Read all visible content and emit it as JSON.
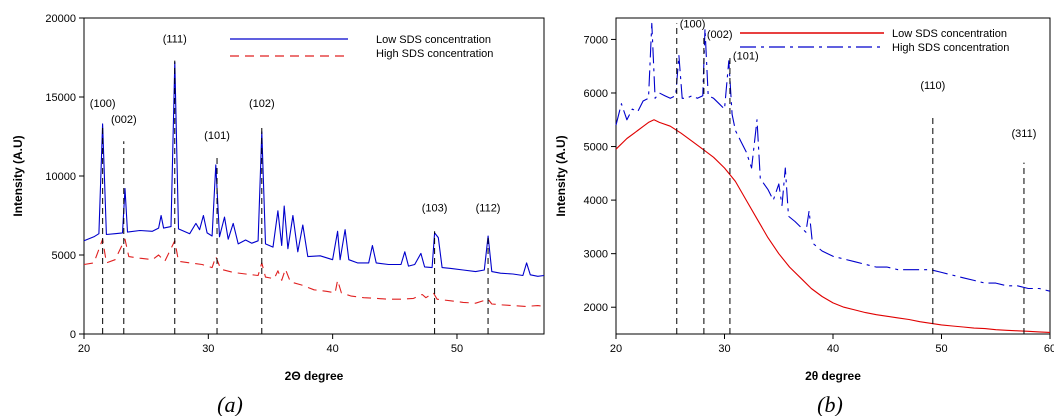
{
  "chart_data": [
    {
      "id": "a",
      "type": "line",
      "caption": "(a)",
      "xlabel": "2Θ degree",
      "ylabel": "Intensity (A.U)",
      "xlim": [
        20,
        57
      ],
      "ylim": [
        0,
        20000
      ],
      "x_ticks": [
        20,
        30,
        40,
        50
      ],
      "y_ticks": [
        0,
        5000,
        10000,
        15000,
        20000
      ],
      "legend_position": "top-right",
      "series": [
        {
          "name": "Low SDS concentration",
          "color": "#0000cc",
          "dash": "solid",
          "points": [
            [
              20,
              5900
            ],
            [
              20.8,
              6150
            ],
            [
              21.2,
              6350
            ],
            [
              21.5,
              13300
            ],
            [
              21.8,
              6300
            ],
            [
              22.5,
              6350
            ],
            [
              23.1,
              6400
            ],
            [
              23.3,
              9200
            ],
            [
              23.5,
              6450
            ],
            [
              24.5,
              6550
            ],
            [
              25.5,
              6500
            ],
            [
              26.0,
              6700
            ],
            [
              26.2,
              7500
            ],
            [
              26.4,
              6700
            ],
            [
              27.0,
              6800
            ],
            [
              27.3,
              17200
            ],
            [
              27.6,
              6650
            ],
            [
              28.5,
              6350
            ],
            [
              29.0,
              7000
            ],
            [
              29.3,
              6600
            ],
            [
              29.6,
              7500
            ],
            [
              29.9,
              6400
            ],
            [
              30.3,
              6200
            ],
            [
              30.6,
              10700
            ],
            [
              30.9,
              6150
            ],
            [
              31.3,
              7400
            ],
            [
              31.6,
              6000
            ],
            [
              32.0,
              7000
            ],
            [
              32.4,
              5700
            ],
            [
              33.0,
              5950
            ],
            [
              33.5,
              5750
            ],
            [
              34.0,
              5900
            ],
            [
              34.3,
              12800
            ],
            [
              34.6,
              5700
            ],
            [
              35.2,
              5500
            ],
            [
              35.6,
              7800
            ],
            [
              35.9,
              5600
            ],
            [
              36.1,
              8100
            ],
            [
              36.4,
              5400
            ],
            [
              36.8,
              7500
            ],
            [
              37.2,
              5200
            ],
            [
              37.6,
              6900
            ],
            [
              38.0,
              4900
            ],
            [
              39.0,
              4950
            ],
            [
              40.0,
              4700
            ],
            [
              40.4,
              6500
            ],
            [
              40.6,
              4700
            ],
            [
              41.0,
              6600
            ],
            [
              41.3,
              4700
            ],
            [
              42.0,
              4500
            ],
            [
              42.9,
              4500
            ],
            [
              43.2,
              5600
            ],
            [
              43.5,
              4500
            ],
            [
              44.5,
              4400
            ],
            [
              45.5,
              4400
            ],
            [
              45.8,
              5200
            ],
            [
              46.1,
              4300
            ],
            [
              46.6,
              4400
            ],
            [
              47.1,
              5100
            ],
            [
              47.4,
              4250
            ],
            [
              48.0,
              4200
            ],
            [
              48.2,
              6400
            ],
            [
              48.5,
              6100
            ],
            [
              48.8,
              4200
            ],
            [
              49.5,
              4150
            ],
            [
              50.5,
              4050
            ],
            [
              51.5,
              3950
            ],
            [
              52.2,
              4050
            ],
            [
              52.5,
              6200
            ],
            [
              52.8,
              3950
            ],
            [
              53.5,
              3850
            ],
            [
              54.5,
              3800
            ],
            [
              55.3,
              3700
            ],
            [
              55.6,
              4500
            ],
            [
              55.9,
              3750
            ],
            [
              56.5,
              3650
            ],
            [
              57,
              3700
            ]
          ]
        },
        {
          "name": "High SDS concentration",
          "color": "#e02020",
          "dash": "dashed",
          "points": [
            [
              20,
              4400
            ],
            [
              20.8,
              4500
            ],
            [
              21.5,
              6000
            ],
            [
              21.8,
              4500
            ],
            [
              22.5,
              4700
            ],
            [
              23.3,
              6000
            ],
            [
              23.6,
              4900
            ],
            [
              24.5,
              4800
            ],
            [
              25.5,
              4700
            ],
            [
              26.0,
              5000
            ],
            [
              26.5,
              4600
            ],
            [
              27.3,
              5900
            ],
            [
              27.6,
              4600
            ],
            [
              28.5,
              4500
            ],
            [
              29.5,
              4400
            ],
            [
              30.3,
              4200
            ],
            [
              30.6,
              4900
            ],
            [
              31.0,
              4100
            ],
            [
              32.0,
              3900
            ],
            [
              33.0,
              3800
            ],
            [
              34.0,
              3700
            ],
            [
              34.3,
              4500
            ],
            [
              34.6,
              3600
            ],
            [
              35.3,
              3500
            ],
            [
              35.6,
              4000
            ],
            [
              35.9,
              3400
            ],
            [
              36.2,
              4100
            ],
            [
              36.6,
              3300
            ],
            [
              37.5,
              3100
            ],
            [
              38.5,
              2800
            ],
            [
              39.5,
              2700
            ],
            [
              40.2,
              2600
            ],
            [
              40.4,
              3400
            ],
            [
              40.7,
              2600
            ],
            [
              41.5,
              2400
            ],
            [
              42.5,
              2300
            ],
            [
              43.5,
              2250
            ],
            [
              44.5,
              2200
            ],
            [
              45.5,
              2200
            ],
            [
              46.5,
              2250
            ],
            [
              47.2,
              2500
            ],
            [
              47.5,
              2300
            ],
            [
              48.1,
              2600
            ],
            [
              48.4,
              2200
            ],
            [
              49.5,
              2100
            ],
            [
              50.5,
              2000
            ],
            [
              51.5,
              1950
            ],
            [
              52.5,
              2200
            ],
            [
              52.8,
              1900
            ],
            [
              53.5,
              1850
            ],
            [
              54.5,
              1800
            ],
            [
              55.5,
              1750
            ],
            [
              56.5,
              1800
            ],
            [
              57,
              1750
            ]
          ]
        }
      ],
      "peaks": [
        {
          "label": "(100)",
          "x": 21.5,
          "top": 13200,
          "label_y": 14100
        },
        {
          "label": "(002)",
          "x": 23.2,
          "top": 12200,
          "label_y": 13100
        },
        {
          "label": "(111)",
          "x": 27.3,
          "top": 17300,
          "label_y": 18200
        },
        {
          "label": "(101)",
          "x": 30.7,
          "top": 11200,
          "label_y": 12100
        },
        {
          "label": "(102)",
          "x": 34.3,
          "top": 13100,
          "label_y": 14100
        },
        {
          "label": "(103)",
          "x": 48.2,
          "top": 6500,
          "label_y": 7500
        },
        {
          "label": "(112)",
          "x": 52.5,
          "top": 6300,
          "label_y": 7500
        }
      ]
    },
    {
      "id": "b",
      "type": "line",
      "caption": "(b)",
      "xlabel": "2θ degree",
      "ylabel": "Intensity (A.U)",
      "xlim": [
        20,
        60
      ],
      "ylim": [
        1500,
        7400
      ],
      "x_ticks": [
        20,
        30,
        40,
        50,
        60
      ],
      "y_ticks": [
        2000,
        3000,
        4000,
        5000,
        6000,
        7000
      ],
      "legend_position": "top-right",
      "series": [
        {
          "name": "Low SDS concentration",
          "color": "#e00000",
          "dash": "solid",
          "points": [
            [
              20,
              4950
            ],
            [
              21,
              5150
            ],
            [
              22,
              5300
            ],
            [
              23,
              5450
            ],
            [
              23.5,
              5500
            ],
            [
              24,
              5450
            ],
            [
              25,
              5380
            ],
            [
              26,
              5250
            ],
            [
              27,
              5100
            ],
            [
              28,
              4950
            ],
            [
              29,
              4800
            ],
            [
              30,
              4600
            ],
            [
              31,
              4350
            ],
            [
              32,
              4000
            ],
            [
              33,
              3650
            ],
            [
              34,
              3300
            ],
            [
              35,
              3000
            ],
            [
              36,
              2750
            ],
            [
              37,
              2550
            ],
            [
              38,
              2350
            ],
            [
              39,
              2200
            ],
            [
              40,
              2080
            ],
            [
              41,
              2000
            ],
            [
              42,
              1950
            ],
            [
              43,
              1900
            ],
            [
              44,
              1860
            ],
            [
              45,
              1830
            ],
            [
              46,
              1800
            ],
            [
              47,
              1770
            ],
            [
              48,
              1730
            ],
            [
              49,
              1700
            ],
            [
              50,
              1670
            ],
            [
              51,
              1650
            ],
            [
              52,
              1630
            ],
            [
              53,
              1610
            ],
            [
              54,
              1600
            ],
            [
              55,
              1580
            ],
            [
              56,
              1570
            ],
            [
              57,
              1560
            ],
            [
              58,
              1550
            ],
            [
              59,
              1540
            ],
            [
              60,
              1530
            ]
          ]
        },
        {
          "name": "High SDS concentration",
          "color": "#0000cc",
          "dash": "dashed",
          "points": [
            [
              20,
              5400
            ],
            [
              20.5,
              5800
            ],
            [
              21,
              5500
            ],
            [
              21.5,
              5700
            ],
            [
              22,
              5650
            ],
            [
              22.5,
              5850
            ],
            [
              23,
              5900
            ],
            [
              23.3,
              7300
            ],
            [
              23.6,
              5900
            ],
            [
              24,
              6000
            ],
            [
              24.5,
              5950
            ],
            [
              25,
              5900
            ],
            [
              25.5,
              5950
            ],
            [
              25.8,
              6700
            ],
            [
              26.1,
              5900
            ],
            [
              26.5,
              5900
            ],
            [
              27,
              5950
            ],
            [
              27.5,
              5900
            ],
            [
              28,
              5950
            ],
            [
              28.2,
              7200
            ],
            [
              28.5,
              5950
            ],
            [
              29,
              5900
            ],
            [
              29.5,
              5800
            ],
            [
              30,
              5700
            ],
            [
              30.4,
              6600
            ],
            [
              30.7,
              5600
            ],
            [
              31,
              5300
            ],
            [
              31.5,
              5100
            ],
            [
              32,
              4900
            ],
            [
              32.5,
              4600
            ],
            [
              33.0,
              5500
            ],
            [
              33.3,
              4400
            ],
            [
              34,
              4200
            ],
            [
              34.5,
              4000
            ],
            [
              35.0,
              4300
            ],
            [
              35.3,
              3900
            ],
            [
              35.6,
              4600
            ],
            [
              35.9,
              3700
            ],
            [
              36.5,
              3600
            ],
            [
              37,
              3500
            ],
            [
              37.5,
              3400
            ],
            [
              37.8,
              3800
            ],
            [
              38.1,
              3200
            ],
            [
              39,
              3050
            ],
            [
              40,
              2950
            ],
            [
              41,
              2900
            ],
            [
              42,
              2850
            ],
            [
              43,
              2800
            ],
            [
              44,
              2750
            ],
            [
              45,
              2750
            ],
            [
              46,
              2700
            ],
            [
              47,
              2700
            ],
            [
              48,
              2700
            ],
            [
              49,
              2700
            ],
            [
              50,
              2650
            ],
            [
              51,
              2600
            ],
            [
              52,
              2550
            ],
            [
              53,
              2500
            ],
            [
              54,
              2450
            ],
            [
              55,
              2450
            ],
            [
              56,
              2400
            ],
            [
              57,
              2400
            ],
            [
              58,
              2350
            ],
            [
              59,
              2350
            ],
            [
              60,
              2300
            ]
          ]
        }
      ],
      "peaks": [
        {
          "label": "(100)",
          "x": 25.6,
          "top": 7300,
          "label_y": 7300
        },
        {
          "label": "(002)",
          "x": 28.1,
          "top": 7100,
          "label_y": 7100
        },
        {
          "label": "(101)",
          "x": 30.5,
          "top": 6700,
          "label_y": 6700
        },
        {
          "label": "(110)",
          "x": 49.2,
          "top": 5600,
          "label_y": 6000
        },
        {
          "label": "(311)",
          "x": 57.6,
          "top": 4700,
          "label_y": 5100
        }
      ]
    }
  ]
}
